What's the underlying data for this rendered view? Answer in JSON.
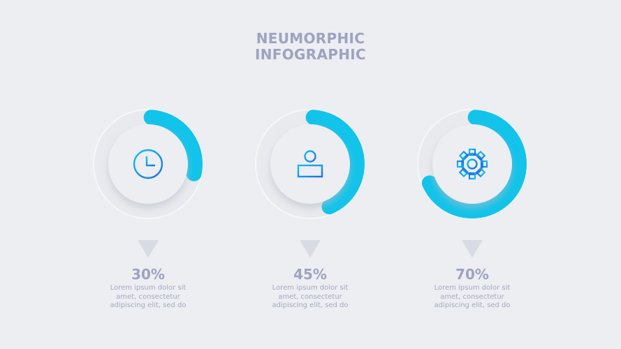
{
  "title": {
    "line1": "NEUMORPHIC",
    "line2": "INFOGRAPHIC"
  },
  "accent_color": "#12c3ea",
  "icon_color": "#1a8fe8",
  "items": [
    {
      "icon": "clock-icon",
      "percent_value": 30,
      "percent": "30%",
      "desc": [
        "Lorem ipsum dolor sit",
        "amet, consectetur",
        "adipiscing elit, sed do"
      ]
    },
    {
      "icon": "user-icon",
      "percent_value": 45,
      "percent": "45%",
      "desc": [
        "Lorem ipsum dolor sit",
        "amet, consectetur",
        "adipiscing elit, sed do"
      ]
    },
    {
      "icon": "gear-icon",
      "percent_value": 70,
      "percent": "70%",
      "desc": [
        "Lorem ipsum dolor sit",
        "amet, consectetur",
        "adipiscing elit, sed do"
      ]
    }
  ]
}
